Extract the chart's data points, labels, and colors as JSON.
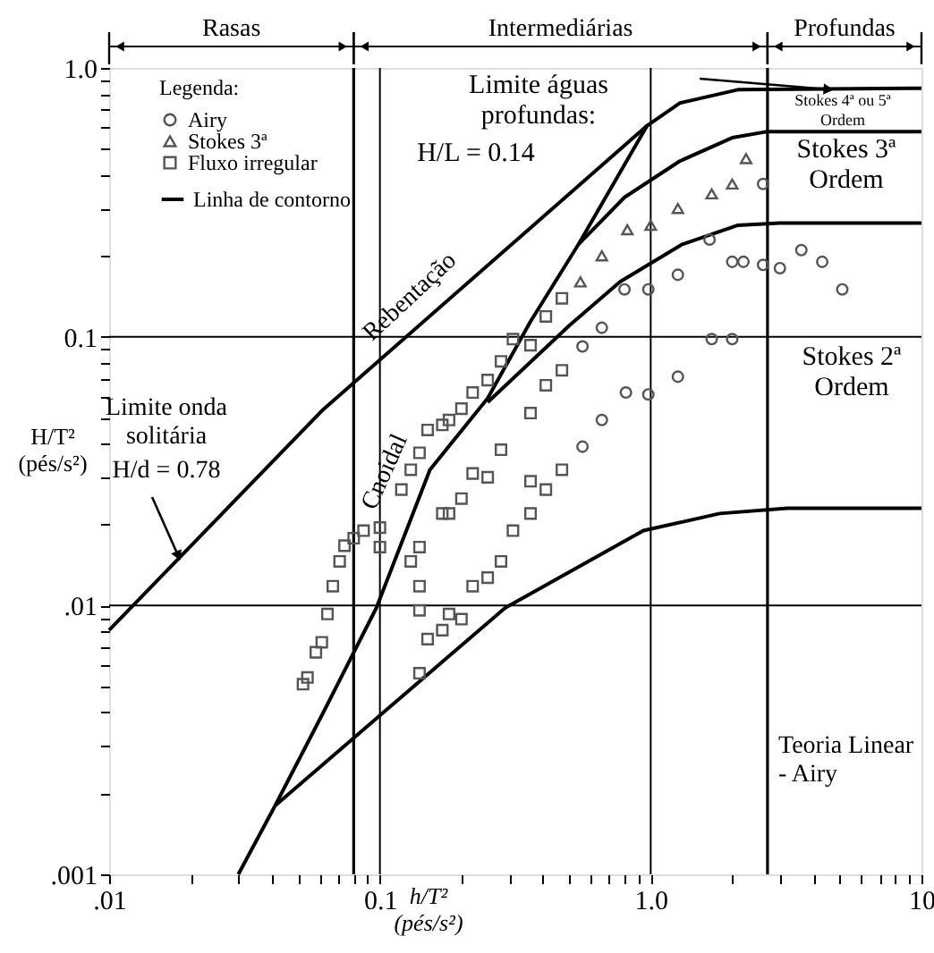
{
  "chart_data": {
    "type": "scatter",
    "xlabel": "h/T²\n(pés/s²)",
    "ylabel": "H/T²\n(pés/s²)",
    "legend_title": "Legenda:",
    "legend": "top left",
    "log": "xy",
    "grid": true,
    "xlim": [
      0.01,
      10
    ],
    "ylim": [
      0.001,
      1
    ],
    "xticks": [
      {
        "value": 0.01,
        "label": ".01"
      },
      {
        "value": 0.02,
        "label": null
      },
      {
        "value": 0.03,
        "label": null
      },
      {
        "value": 0.04,
        "label": null
      },
      {
        "value": 0.05,
        "label": null
      },
      {
        "value": 0.06,
        "label": null
      },
      {
        "value": 0.07,
        "label": null
      },
      {
        "value": 0.08,
        "label": null
      },
      {
        "value": 0.09,
        "label": null
      },
      {
        "value": 0.1,
        "label": "0.1"
      },
      {
        "value": 0.2,
        "label": null
      },
      {
        "value": 0.3,
        "label": null
      },
      {
        "value": 0.4,
        "label": null
      },
      {
        "value": 0.5,
        "label": null
      },
      {
        "value": 0.6,
        "label": null
      },
      {
        "value": 0.7,
        "label": null
      },
      {
        "value": 0.8,
        "label": null
      },
      {
        "value": 0.9,
        "label": null
      },
      {
        "value": 1,
        "label": "1.0"
      },
      {
        "value": 2,
        "label": null
      },
      {
        "value": 3,
        "label": null
      },
      {
        "value": 4,
        "label": null
      },
      {
        "value": 5,
        "label": null
      },
      {
        "value": 6,
        "label": null
      },
      {
        "value": 7,
        "label": null
      },
      {
        "value": 8,
        "label": null
      },
      {
        "value": 9,
        "label": null
      },
      10
    ],
    "yticks": [
      {
        "value": 0.001,
        "label": ".001"
      },
      {
        "value": 0.002,
        "label": null
      },
      {
        "value": 0.003,
        "label": null
      },
      {
        "value": 0.004,
        "label": null
      },
      {
        "value": 0.005,
        "label": null
      },
      {
        "value": 0.006,
        "label": null
      },
      {
        "value": 0.007,
        "label": null
      },
      {
        "value": 0.008,
        "label": null
      },
      {
        "value": 0.009,
        "label": null
      },
      {
        "value": 0.01,
        "label": ".01"
      },
      {
        "value": 0.02,
        "label": null
      },
      {
        "value": 0.03,
        "label": null
      },
      {
        "value": 0.04,
        "label": null
      },
      {
        "value": 0.05,
        "label": null
      },
      {
        "value": 0.06,
        "label": null
      },
      {
        "value": 0.07,
        "label": null
      },
      {
        "value": 0.08,
        "label": null
      },
      {
        "value": 0.09,
        "label": null
      },
      {
        "value": 0.1,
        "label": "0.1"
      },
      {
        "value": 0.2,
        "label": null
      },
      {
        "value": 0.3,
        "label": null
      },
      {
        "value": 0.4,
        "label": null
      },
      {
        "value": 0.5,
        "label": null
      },
      {
        "value": 0.6,
        "label": null
      },
      {
        "value": 0.7,
        "label": null
      },
      {
        "value": 0.8,
        "label": null
      },
      {
        "value": 0.9,
        "label": null
      },
      {
        "value": 1,
        "label": "1.0"
      }
    ],
    "ref_lines": [
      {
        "axis": "x",
        "value": 0.08
      },
      {
        "axis": "x",
        "value": 2.7
      }
    ],
    "annotations": [
      "Rasas",
      "Intermediárias",
      "Profundas",
      "Limite águas\nprofundas:",
      "H/L = 0.14",
      "Stokes 4ª ou 5ª\nOrdem",
      "Stokes 3ª\nOrdem",
      "Stokes 2ª\nOrdem",
      "Cnoidal",
      "Rebentação",
      "Limite onda\nsolitária",
      {
        "text": "H/d = 0.78",
        "x": 0.018,
        "y": 0.0153
      },
      "Teoria Linear\n- Airy"
    ],
    "series": [
      {
        "name": "Airy",
        "marker": "circle",
        "color": "#555555",
        "x": [
          2.6,
          1.65,
          2.0,
          2.2,
          2.6,
          3.0,
          3.6,
          4.3,
          5.1,
          1.26,
          0.98,
          0.8,
          0.66,
          0.56,
          1.68,
          2.0,
          1.26,
          0.98,
          0.81,
          0.66,
          0.56
        ],
        "values": [
          0.37,
          0.23,
          0.19,
          0.19,
          0.185,
          0.18,
          0.21,
          0.19,
          0.15,
          0.17,
          0.15,
          0.15,
          0.108,
          0.092,
          0.098,
          0.098,
          0.071,
          0.061,
          0.062,
          0.049,
          0.039
        ]
      },
      {
        "name": "Stokes 3ª",
        "marker": "triangle",
        "color": "#555555",
        "x": [
          2.25,
          2.0,
          1.68,
          1.26,
          1.0,
          0.82,
          0.66,
          0.55
        ],
        "values": [
          0.46,
          0.37,
          0.34,
          0.3,
          0.26,
          0.25,
          0.2,
          0.16
        ]
      },
      {
        "name": "Fluxo irregular",
        "marker": "square",
        "color": "#555555",
        "x": [
          0.47,
          0.41,
          0.31,
          0.36,
          0.28,
          0.47,
          0.25,
          0.22,
          0.41,
          0.2,
          0.18,
          0.17,
          0.15,
          0.14,
          0.13,
          0.12,
          0.36,
          0.28,
          0.22,
          0.25,
          0.47,
          0.41,
          0.36,
          0.36,
          0.2,
          0.18,
          0.17,
          0.31,
          0.28,
          0.25,
          0.22,
          0.14,
          0.13,
          0.14,
          0.14,
          0.1,
          0.1,
          0.087,
          0.08,
          0.074,
          0.071,
          0.067,
          0.064,
          0.061,
          0.058,
          0.054,
          0.052,
          0.18,
          0.2,
          0.17,
          0.15,
          0.14
        ],
        "values": [
          0.139,
          0.119,
          0.098,
          0.093,
          0.081,
          0.075,
          0.069,
          0.062,
          0.066,
          0.054,
          0.049,
          0.047,
          0.045,
          0.037,
          0.032,
          0.027,
          0.052,
          0.038,
          0.031,
          0.03,
          0.032,
          0.027,
          0.029,
          0.022,
          0.025,
          0.022,
          0.022,
          0.019,
          0.0146,
          0.0127,
          0.0118,
          0.0165,
          0.0146,
          0.0118,
          0.0096,
          0.0195,
          0.0165,
          0.019,
          0.0178,
          0.0167,
          0.0146,
          0.0118,
          0.0093,
          0.0073,
          0.0067,
          0.0054,
          0.0051,
          0.0093,
          0.0089,
          0.0081,
          0.0075,
          0.0056
        ]
      },
      {
        "name": "Linha de contorno",
        "type": "line",
        "color": "#000000",
        "x": [
          0.01,
          0.061,
          0.97,
          1.28,
          2.1,
          10
        ],
        "values": [
          0.0081,
          0.053,
          0.61,
          0.74,
          0.83,
          0.84
        ]
      },
      {
        "type": "line",
        "color": "#000000",
        "x": [
          0.03,
          0.041,
          0.061,
          0.097,
          0.153,
          0.25,
          0.36,
          0.54,
          0.97
        ],
        "values": [
          0.001,
          0.0018,
          0.0039,
          0.0098,
          0.032,
          0.059,
          0.114,
          0.22,
          0.61
        ]
      },
      {
        "type": "line",
        "color": "#000000",
        "x": [
          0.041,
          0.1,
          0.29,
          0.94,
          1.8,
          3.2,
          10
        ],
        "values": [
          0.0018,
          0.0039,
          0.0098,
          0.019,
          0.022,
          0.023,
          0.023
        ]
      },
      {
        "type": "line",
        "color": "#000000",
        "x": [
          0.25,
          0.5,
          0.77,
          1.3,
          2.1,
          3,
          10
        ],
        "values": [
          0.057,
          0.11,
          0.16,
          0.22,
          0.26,
          0.265,
          0.265
        ]
      },
      {
        "type": "line",
        "color": "#000000",
        "x": [
          0.54,
          0.8,
          1.28,
          2.0,
          2.7,
          10
        ],
        "values": [
          0.22,
          0.33,
          0.45,
          0.55,
          0.58,
          0.58
        ]
      }
    ]
  }
}
